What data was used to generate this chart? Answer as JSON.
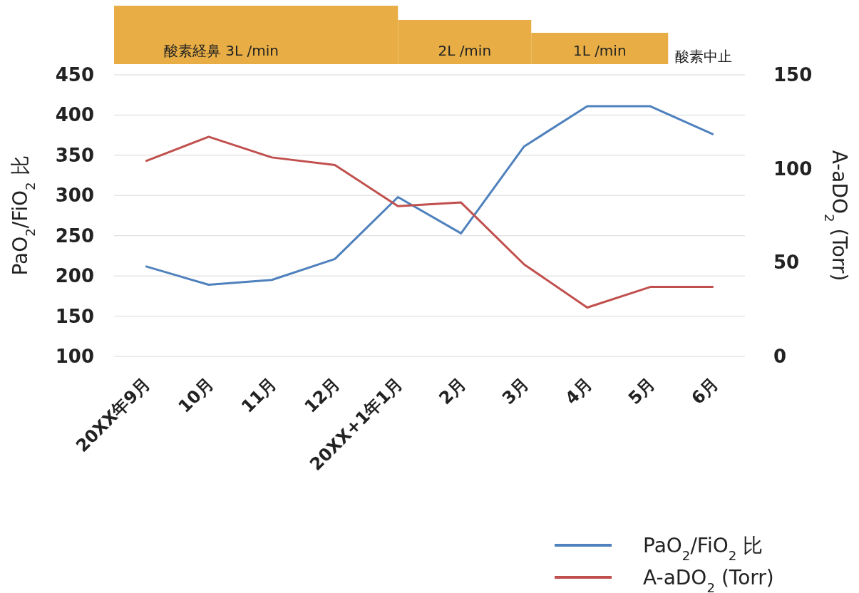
{
  "chart_data": {
    "type": "line",
    "categories": [
      "20XX年9月",
      "10月",
      "11月",
      "12月",
      "20XX+1年1月",
      "2月",
      "3月",
      "4月",
      "5月",
      "6月"
    ],
    "series": [
      {
        "name": "PaO$_{2}$/FiO$_{2}$ 比",
        "color": "#4f81bd",
        "values": [
          212,
          189,
          195,
          221,
          298,
          253,
          361,
          411,
          411,
          376
        ]
      },
      {
        "name": "A-aDO$_{2}$ (Torr)",
        "color": "#c0504d",
        "axis": "y2",
        "values": [
          104,
          117,
          106,
          102,
          80,
          82,
          49,
          26,
          37,
          37
        ]
      }
    ],
    "ylabel": "PaO$_{2}$/FiO$_{2}$ 比",
    "y2label": "A-aDO$_{2}$ (Torr)",
    "ylim": [
      100,
      450
    ],
    "yticks": [
      100,
      150,
      200,
      250,
      300,
      350,
      400,
      450
    ],
    "y2lim": [
      0,
      150
    ],
    "y2ticks": [
      0,
      50,
      100,
      150
    ],
    "annotations": [
      "酸素経鼻  3L /min",
      "2L /min",
      "1L /min",
      "酸素中止"
    ],
    "grid": "y",
    "legend": "bottom right",
    "line_style": "solid",
    "marker": "none"
  }
}
